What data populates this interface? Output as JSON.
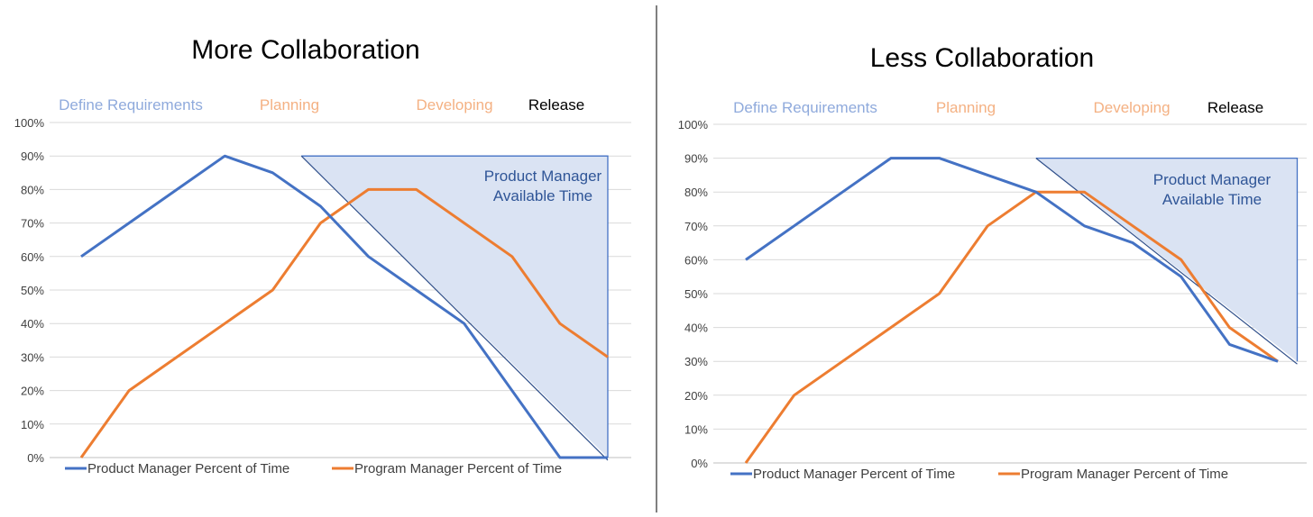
{
  "chart_data": [
    {
      "type": "line",
      "title": "More Collaboration",
      "x": [
        0,
        1,
        2,
        3,
        4,
        5,
        6,
        7,
        8,
        9,
        10,
        11
      ],
      "ylim": [
        0,
        1
      ],
      "yticks": [
        "0%",
        "10%",
        "20%",
        "30%",
        "40%",
        "50%",
        "60%",
        "70%",
        "80%",
        "90%",
        "100%"
      ],
      "grid": true,
      "legend_position": "bottom",
      "phases": [
        {
          "label": "Define Requirements",
          "color": "#8faadc"
        },
        {
          "label": "Planning",
          "color": "#f4b183"
        },
        {
          "label": "Developing",
          "color": "#f4b183"
        },
        {
          "label": "Release",
          "color": "#000000"
        }
      ],
      "series": [
        {
          "name": "Product Manager Percent of Time",
          "color": "#4472c4",
          "values": [
            0.6,
            0.7,
            0.8,
            0.9,
            0.85,
            0.75,
            0.6,
            0.5,
            0.4,
            0.2,
            0.0,
            0.0
          ]
        },
        {
          "name": "Program Manager Percent of Time",
          "color": "#ed7d31",
          "values": [
            0.0,
            0.2,
            0.3,
            0.4,
            0.5,
            0.7,
            0.8,
            0.8,
            0.7,
            0.6,
            0.4,
            0.3
          ]
        }
      ],
      "region": {
        "label_lines": [
          "Product Manager",
          "Available Time"
        ],
        "fill": "#dae3f3",
        "stroke": "#4472c4",
        "x_start": 4.6,
        "x_end": 11,
        "y_top": 0.9,
        "y_bottom": 0.0
      }
    },
    {
      "type": "line",
      "title": "Less Collaboration",
      "x": [
        0,
        1,
        2,
        3,
        4,
        5,
        6,
        7,
        8,
        9,
        10,
        11
      ],
      "ylim": [
        0,
        1
      ],
      "yticks": [
        "0%",
        "10%",
        "20%",
        "30%",
        "40%",
        "50%",
        "60%",
        "70%",
        "80%",
        "90%",
        "100%"
      ],
      "grid": true,
      "legend_position": "bottom",
      "phases": [
        {
          "label": "Define Requirements",
          "color": "#8faadc"
        },
        {
          "label": "Planning",
          "color": "#f4b183"
        },
        {
          "label": "Developing",
          "color": "#f4b183"
        },
        {
          "label": "Release",
          "color": "#000000"
        }
      ],
      "series": [
        {
          "name": "Product Manager Percent of Time",
          "color": "#4472c4",
          "values": [
            0.6,
            0.7,
            0.8,
            0.9,
            0.9,
            0.85,
            0.8,
            0.7,
            0.65,
            0.55,
            0.35,
            0.3
          ]
        },
        {
          "name": "Program Manager Percent of Time",
          "color": "#ed7d31",
          "values": [
            0.0,
            0.2,
            0.3,
            0.4,
            0.5,
            0.7,
            0.8,
            0.8,
            0.7,
            0.6,
            0.4,
            0.3
          ]
        }
      ],
      "region": {
        "label_lines": [
          "Product Manager",
          "Available Time"
        ],
        "fill": "#dae3f3",
        "stroke": "#4472c4",
        "x_start": 6,
        "x_end": 11.4,
        "y_top": 0.9,
        "y_bottom": 0.3
      }
    }
  ]
}
